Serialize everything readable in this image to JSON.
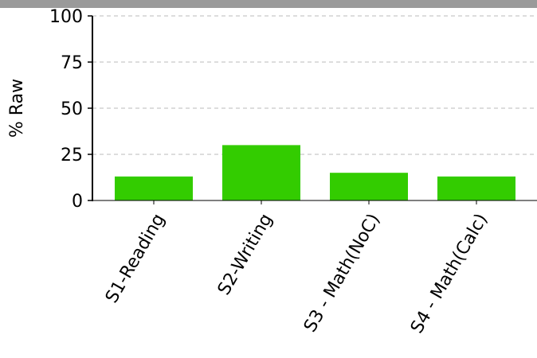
{
  "chart_data": {
    "type": "bar",
    "categories": [
      "S1-Reading",
      "S2-Writing",
      "S3 - Math(NoC)",
      "S4 - Math(Calc)"
    ],
    "values": [
      13,
      30,
      15,
      13
    ],
    "title": "",
    "xlabel": "",
    "ylabel": "% Raw",
    "ylim": [
      0,
      100
    ],
    "yticks": [
      0,
      25,
      50,
      75,
      100
    ],
    "grid": true,
    "bar_color": "#33cc00",
    "header_color": "#9a9a9a"
  }
}
